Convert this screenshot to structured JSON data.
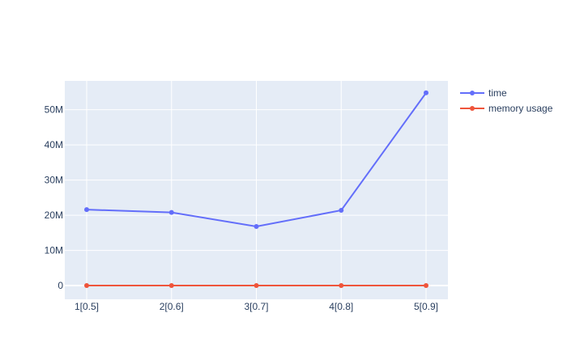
{
  "chart_data": {
    "type": "line",
    "categories": [
      "1[0.5]",
      "2[0.6]",
      "3[0.7]",
      "4[0.8]",
      "5[0.9]"
    ],
    "series": [
      {
        "name": "time",
        "color": "#636efa",
        "values": [
          21600000,
          20800000,
          16800000,
          21400000,
          54800000
        ]
      },
      {
        "name": "memory usage",
        "color": "#ef553b",
        "values": [
          0,
          0,
          0,
          0,
          0
        ]
      }
    ],
    "y_ticks": [
      0,
      10000000,
      20000000,
      30000000,
      40000000,
      50000000
    ],
    "y_tick_labels": [
      "0",
      "10M",
      "20M",
      "30M",
      "40M",
      "50M"
    ],
    "ylim": [
      -3900000,
      58200000
    ],
    "grid": true,
    "legend_position": "top-right",
    "plot_background": "#e5ecf6"
  }
}
